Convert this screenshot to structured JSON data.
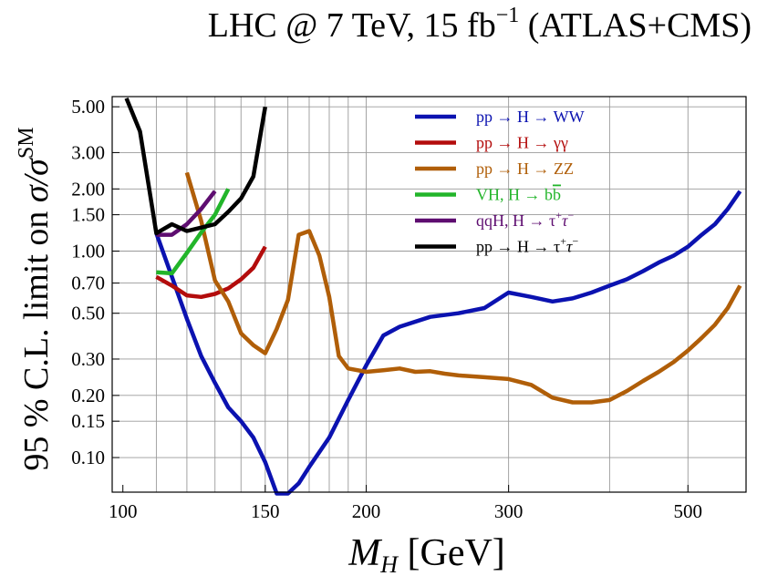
{
  "chart_data": {
    "type": "line",
    "title": "LHC @ 7 TeV, 15 fb",
    "title_sup": "−1",
    "title_rest": " (ATLAS+CMS)",
    "xlabel": "M_H [GeV]",
    "ylabel": "95 % C.L. limit on σ/σ^SM",
    "x_scale": "log",
    "y_scale": "log",
    "xlim": [
      97,
      590
    ],
    "ylim": [
      0.068,
      5.6
    ],
    "x_ticks": [
      {
        "value": 100,
        "label": "100"
      },
      {
        "value": 150,
        "label": "150"
      },
      {
        "value": 200,
        "label": "200"
      },
      {
        "value": 300,
        "label": "300"
      },
      {
        "value": 500,
        "label": "500"
      }
    ],
    "y_ticks": [
      {
        "value": 5.0,
        "label": "5.00"
      },
      {
        "value": 3.0,
        "label": "3.00"
      },
      {
        "value": 2.0,
        "label": "2.00"
      },
      {
        "value": 1.5,
        "label": "1.50"
      },
      {
        "value": 1.0,
        "label": "1.00"
      },
      {
        "value": 0.7,
        "label": "0.70"
      },
      {
        "value": 0.5,
        "label": "0.50"
      },
      {
        "value": 0.3,
        "label": "0.30"
      },
      {
        "value": 0.2,
        "label": "0.20"
      },
      {
        "value": 0.15,
        "label": "0.15"
      },
      {
        "value": 0.1,
        "label": "0.10"
      }
    ],
    "x_gridlines": [
      110,
      120,
      130,
      140,
      150,
      160,
      170,
      180,
      190,
      200,
      300,
      400,
      500
    ],
    "y_gridlines": [
      5.0,
      3.0,
      2.0,
      1.5,
      1.0,
      0.7,
      0.5,
      0.3,
      0.2,
      0.15,
      0.1
    ],
    "legend_position": "top-right",
    "series": [
      {
        "name": "pp → H → WW",
        "color": "#0b12b0",
        "x": [
          110,
          115,
          120,
          125,
          130,
          135,
          140,
          145,
          150,
          155,
          160,
          165,
          170,
          180,
          190,
          200,
          210,
          220,
          240,
          260,
          280,
          300,
          320,
          340,
          360,
          380,
          400,
          420,
          440,
          460,
          480,
          500,
          520,
          540,
          560,
          580
        ],
        "y": [
          1.22,
          0.75,
          0.47,
          0.31,
          0.23,
          0.175,
          0.15,
          0.125,
          0.095,
          0.067,
          0.067,
          0.075,
          0.09,
          0.125,
          0.19,
          0.28,
          0.39,
          0.43,
          0.48,
          0.5,
          0.53,
          0.63,
          0.6,
          0.57,
          0.59,
          0.63,
          0.68,
          0.73,
          0.8,
          0.88,
          0.95,
          1.05,
          1.2,
          1.35,
          1.6,
          1.95
        ]
      },
      {
        "name": "pp → H → γγ",
        "color": "#b30c0c",
        "x": [
          110,
          115,
          120,
          125,
          130,
          135,
          140,
          145,
          150
        ],
        "y": [
          0.75,
          0.68,
          0.61,
          0.6,
          0.62,
          0.66,
          0.73,
          0.83,
          1.05
        ]
      },
      {
        "name": "pp → H → ZZ",
        "color": "#b05e08",
        "x": [
          120,
          125,
          130,
          135,
          140,
          145,
          150,
          155,
          160,
          165,
          170,
          175,
          180,
          185,
          190,
          200,
          210,
          220,
          230,
          240,
          250,
          260,
          280,
          300,
          320,
          340,
          360,
          380,
          400,
          420,
          440,
          460,
          480,
          500,
          520,
          540,
          560,
          580
        ],
        "y": [
          2.4,
          1.4,
          0.72,
          0.57,
          0.4,
          0.35,
          0.32,
          0.42,
          0.58,
          1.2,
          1.25,
          0.95,
          0.6,
          0.31,
          0.27,
          0.26,
          0.265,
          0.27,
          0.26,
          0.262,
          0.255,
          0.25,
          0.245,
          0.24,
          0.225,
          0.195,
          0.185,
          0.185,
          0.19,
          0.21,
          0.235,
          0.26,
          0.29,
          0.33,
          0.38,
          0.44,
          0.53,
          0.68
        ]
      },
      {
        "name": "VH, H → b",
        "name_bar": "b",
        "color": "#22b52a",
        "x": [
          110,
          115,
          120,
          125,
          130,
          135
        ],
        "y": [
          0.79,
          0.78,
          0.98,
          1.23,
          1.5,
          2.0
        ]
      },
      {
        "name": "qqH, H → τ",
        "name_sup": "+",
        "name_mid": "τ",
        "name_sup2": "−",
        "color": "#5e0d70",
        "x": [
          110,
          115,
          120,
          125,
          130
        ],
        "y": [
          1.2,
          1.2,
          1.35,
          1.6,
          1.95
        ]
      },
      {
        "name": "pp → H → τ",
        "name_sup": "+",
        "name_mid": "τ",
        "name_sup2": "−",
        "color": "#000000",
        "x": [
          101,
          105,
          110,
          115,
          120,
          125,
          130,
          135,
          140,
          145,
          150
        ],
        "y": [
          5.5,
          3.8,
          1.22,
          1.35,
          1.25,
          1.3,
          1.35,
          1.55,
          1.8,
          2.3,
          5.0
        ]
      }
    ]
  }
}
